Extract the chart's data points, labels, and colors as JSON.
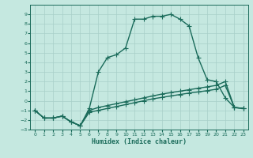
{
  "xlabel": "Humidex (Indice chaleur)",
  "xlim": [
    -0.5,
    23.5
  ],
  "ylim": [
    -3,
    10
  ],
  "yticks": [
    -3,
    -2,
    -1,
    0,
    1,
    2,
    3,
    4,
    5,
    6,
    7,
    8,
    9
  ],
  "xticks": [
    0,
    1,
    2,
    3,
    4,
    5,
    6,
    7,
    8,
    9,
    10,
    11,
    12,
    13,
    14,
    15,
    16,
    17,
    18,
    19,
    20,
    21,
    22,
    23
  ],
  "background_color": "#c5e8e0",
  "grid_color": "#a8cfc8",
  "line_color": "#1a6b5a",
  "curve1_x": [
    0,
    1,
    2,
    3,
    4,
    5,
    6,
    7,
    8,
    9,
    10,
    11,
    12,
    13,
    14,
    15,
    16,
    17,
    18,
    19,
    20,
    21,
    22,
    23
  ],
  "curve1_y": [
    -1.0,
    -1.8,
    -1.8,
    -1.6,
    -2.2,
    -2.6,
    -0.8,
    3.0,
    4.5,
    4.8,
    5.5,
    8.5,
    8.5,
    8.8,
    8.8,
    9.0,
    8.5,
    7.8,
    4.5,
    2.2,
    2.0,
    0.3,
    -0.7,
    -0.8
  ],
  "curve2_x": [
    0,
    1,
    2,
    3,
    4,
    5,
    6,
    7,
    8,
    9,
    10,
    11,
    12,
    13,
    14,
    15,
    16,
    17,
    18,
    19,
    20,
    21,
    22,
    23
  ],
  "curve2_y": [
    -1.0,
    -1.8,
    -1.8,
    -1.6,
    -2.2,
    -2.6,
    -1.0,
    -0.7,
    -0.5,
    -0.3,
    -0.1,
    0.1,
    0.3,
    0.5,
    0.7,
    0.85,
    1.0,
    1.15,
    1.3,
    1.45,
    1.6,
    2.0,
    -0.7,
    -0.8
  ],
  "curve3_x": [
    0,
    1,
    2,
    3,
    4,
    5,
    6,
    7,
    8,
    9,
    10,
    11,
    12,
    13,
    14,
    15,
    16,
    17,
    18,
    19,
    20,
    21,
    22,
    23
  ],
  "curve3_y": [
    -1.0,
    -1.8,
    -1.8,
    -1.6,
    -2.2,
    -2.6,
    -1.2,
    -1.0,
    -0.8,
    -0.6,
    -0.4,
    -0.2,
    0.0,
    0.2,
    0.35,
    0.5,
    0.65,
    0.8,
    0.92,
    1.05,
    1.2,
    1.6,
    -0.7,
    -0.8
  ],
  "line_width": 1.0,
  "marker_size": 2.0
}
